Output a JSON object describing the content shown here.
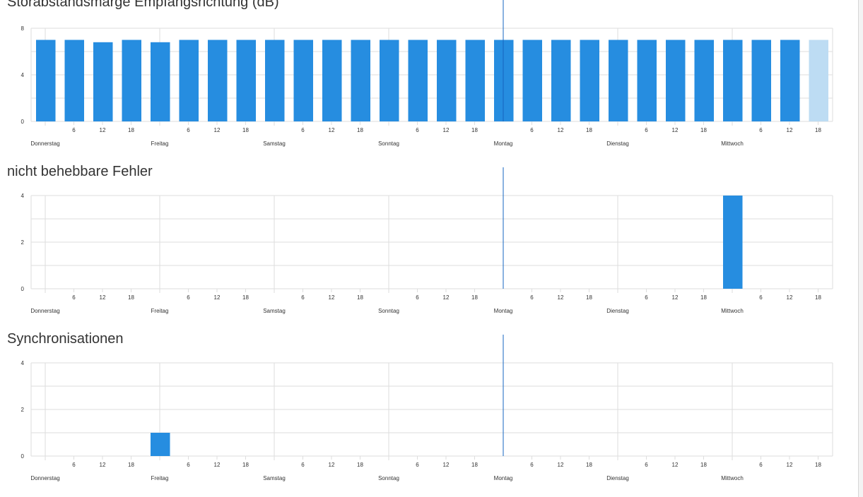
{
  "colors": {
    "bar": "#268de0",
    "bar_partial": "#bddcf3",
    "grid": "#dddddd",
    "marker": "#1565c0",
    "text": "#333333"
  },
  "chart_data": [
    {
      "type": "bar",
      "title": "Störabstandsmarge Empfangsrichtung (dB)",
      "ylim": [
        0,
        8
      ],
      "yticks": [
        0,
        4,
        8
      ],
      "grid": true,
      "x_hour_ticks": [
        "6",
        "12",
        "18",
        "6",
        "12",
        "18",
        "6",
        "12",
        "18",
        "6",
        "12",
        "18",
        "6",
        "12",
        "18",
        "6",
        "12",
        "18",
        "6",
        "12",
        "18"
      ],
      "x_day_labels": [
        "Donnerstag",
        "Freitag",
        "Samstag",
        "Sonntag",
        "Montag",
        "Dienstag",
        "Mittwoch"
      ],
      "values": [
        7,
        7,
        6.8,
        7,
        6.8,
        7,
        7,
        7,
        7,
        7,
        7,
        7,
        7,
        7,
        7,
        7,
        7,
        7,
        7,
        7,
        7,
        7,
        7,
        7,
        7,
        7,
        7,
        7
      ],
      "partial_last": true
    },
    {
      "type": "bar",
      "title": "nicht behebbare Fehler",
      "ylim": [
        0,
        4
      ],
      "yticks": [
        0,
        2,
        4
      ],
      "grid": true,
      "x_hour_ticks": [
        "6",
        "12",
        "18",
        "6",
        "12",
        "18",
        "6",
        "12",
        "18",
        "6",
        "12",
        "18",
        "6",
        "12",
        "18",
        "6",
        "12",
        "18",
        "6",
        "12",
        "18"
      ],
      "x_day_labels": [
        "Donnerstag",
        "Freitag",
        "Samstag",
        "Sonntag",
        "Montag",
        "Dienstag",
        "Mittwoch"
      ],
      "values": [
        0,
        0,
        0,
        0,
        0,
        0,
        0,
        0,
        0,
        0,
        0,
        0,
        0,
        0,
        0,
        0,
        0,
        0,
        0,
        0,
        0,
        0,
        0,
        0,
        4,
        0,
        0,
        0
      ],
      "partial_last": false
    },
    {
      "type": "bar",
      "title": "Synchronisationen",
      "ylim": [
        0,
        4
      ],
      "yticks": [
        0,
        2,
        4
      ],
      "grid": true,
      "x_hour_ticks": [
        "6",
        "12",
        "18",
        "6",
        "12",
        "18",
        "6",
        "12",
        "18",
        "6",
        "12",
        "18",
        "6",
        "12",
        "18",
        "6",
        "12",
        "18",
        "6",
        "12",
        "18"
      ],
      "x_day_labels": [
        "Donnerstag",
        "Freitag",
        "Samstag",
        "Sonntag",
        "Montag",
        "Dienstag",
        "Mittwoch"
      ],
      "values": [
        0,
        0,
        0,
        0,
        1,
        0,
        0,
        0,
        0,
        0,
        0,
        0,
        0,
        0,
        0,
        0,
        0,
        0,
        0,
        0,
        0,
        0,
        0,
        0,
        0,
        0,
        0,
        0
      ],
      "partial_last": false
    }
  ]
}
